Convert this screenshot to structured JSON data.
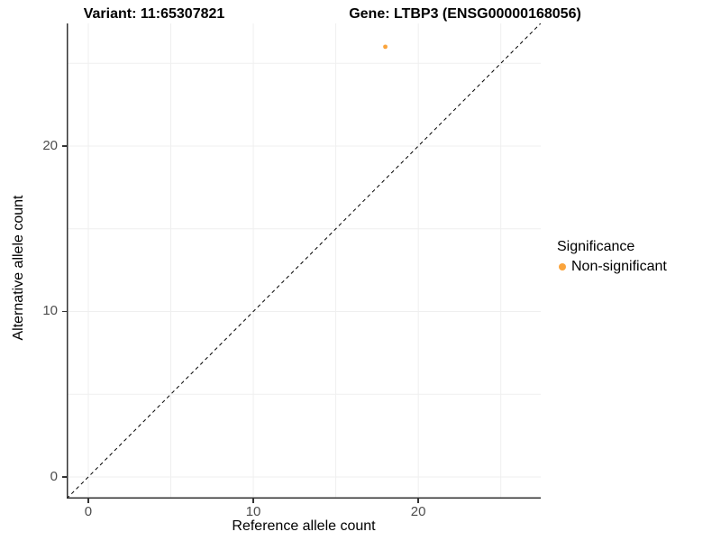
{
  "titles": {
    "variant": "Variant: 11:65307821",
    "gene": "Gene: LTBP3 (ENSG00000168056)"
  },
  "chart_data": {
    "type": "scatter",
    "x_axis": {
      "label": "Reference allele count",
      "ticks": [
        0,
        10,
        20
      ],
      "lim": [
        -1.31,
        27.42
      ],
      "gridlines": [
        0,
        5,
        10,
        15,
        20,
        25
      ]
    },
    "y_axis": {
      "label": "Alternative allele count",
      "ticks": [
        0,
        10,
        20
      ],
      "lim": [
        -1.31,
        27.41
      ],
      "gridlines": [
        0,
        5,
        10,
        15,
        20,
        25
      ]
    },
    "series": [
      {
        "name": "Non-significant",
        "color": "#FAA43C",
        "points": [
          {
            "x": 18,
            "y": 26
          }
        ]
      }
    ],
    "identity_line": {
      "style": "dashed",
      "color": "#000000",
      "from": [
        -1.31,
        -1.31
      ],
      "to": [
        27.42,
        27.42
      ]
    },
    "legend": {
      "title": "Significance",
      "position": "right",
      "entries": [
        {
          "label": "Non-significant",
          "color": "#FAA43C"
        }
      ]
    },
    "grid": true
  },
  "colors": {
    "background": "#ffffff",
    "grid": "#efefef",
    "axis_line": "#333333",
    "tick_mark": "#333333",
    "tick_label": "#4d4d4d"
  }
}
